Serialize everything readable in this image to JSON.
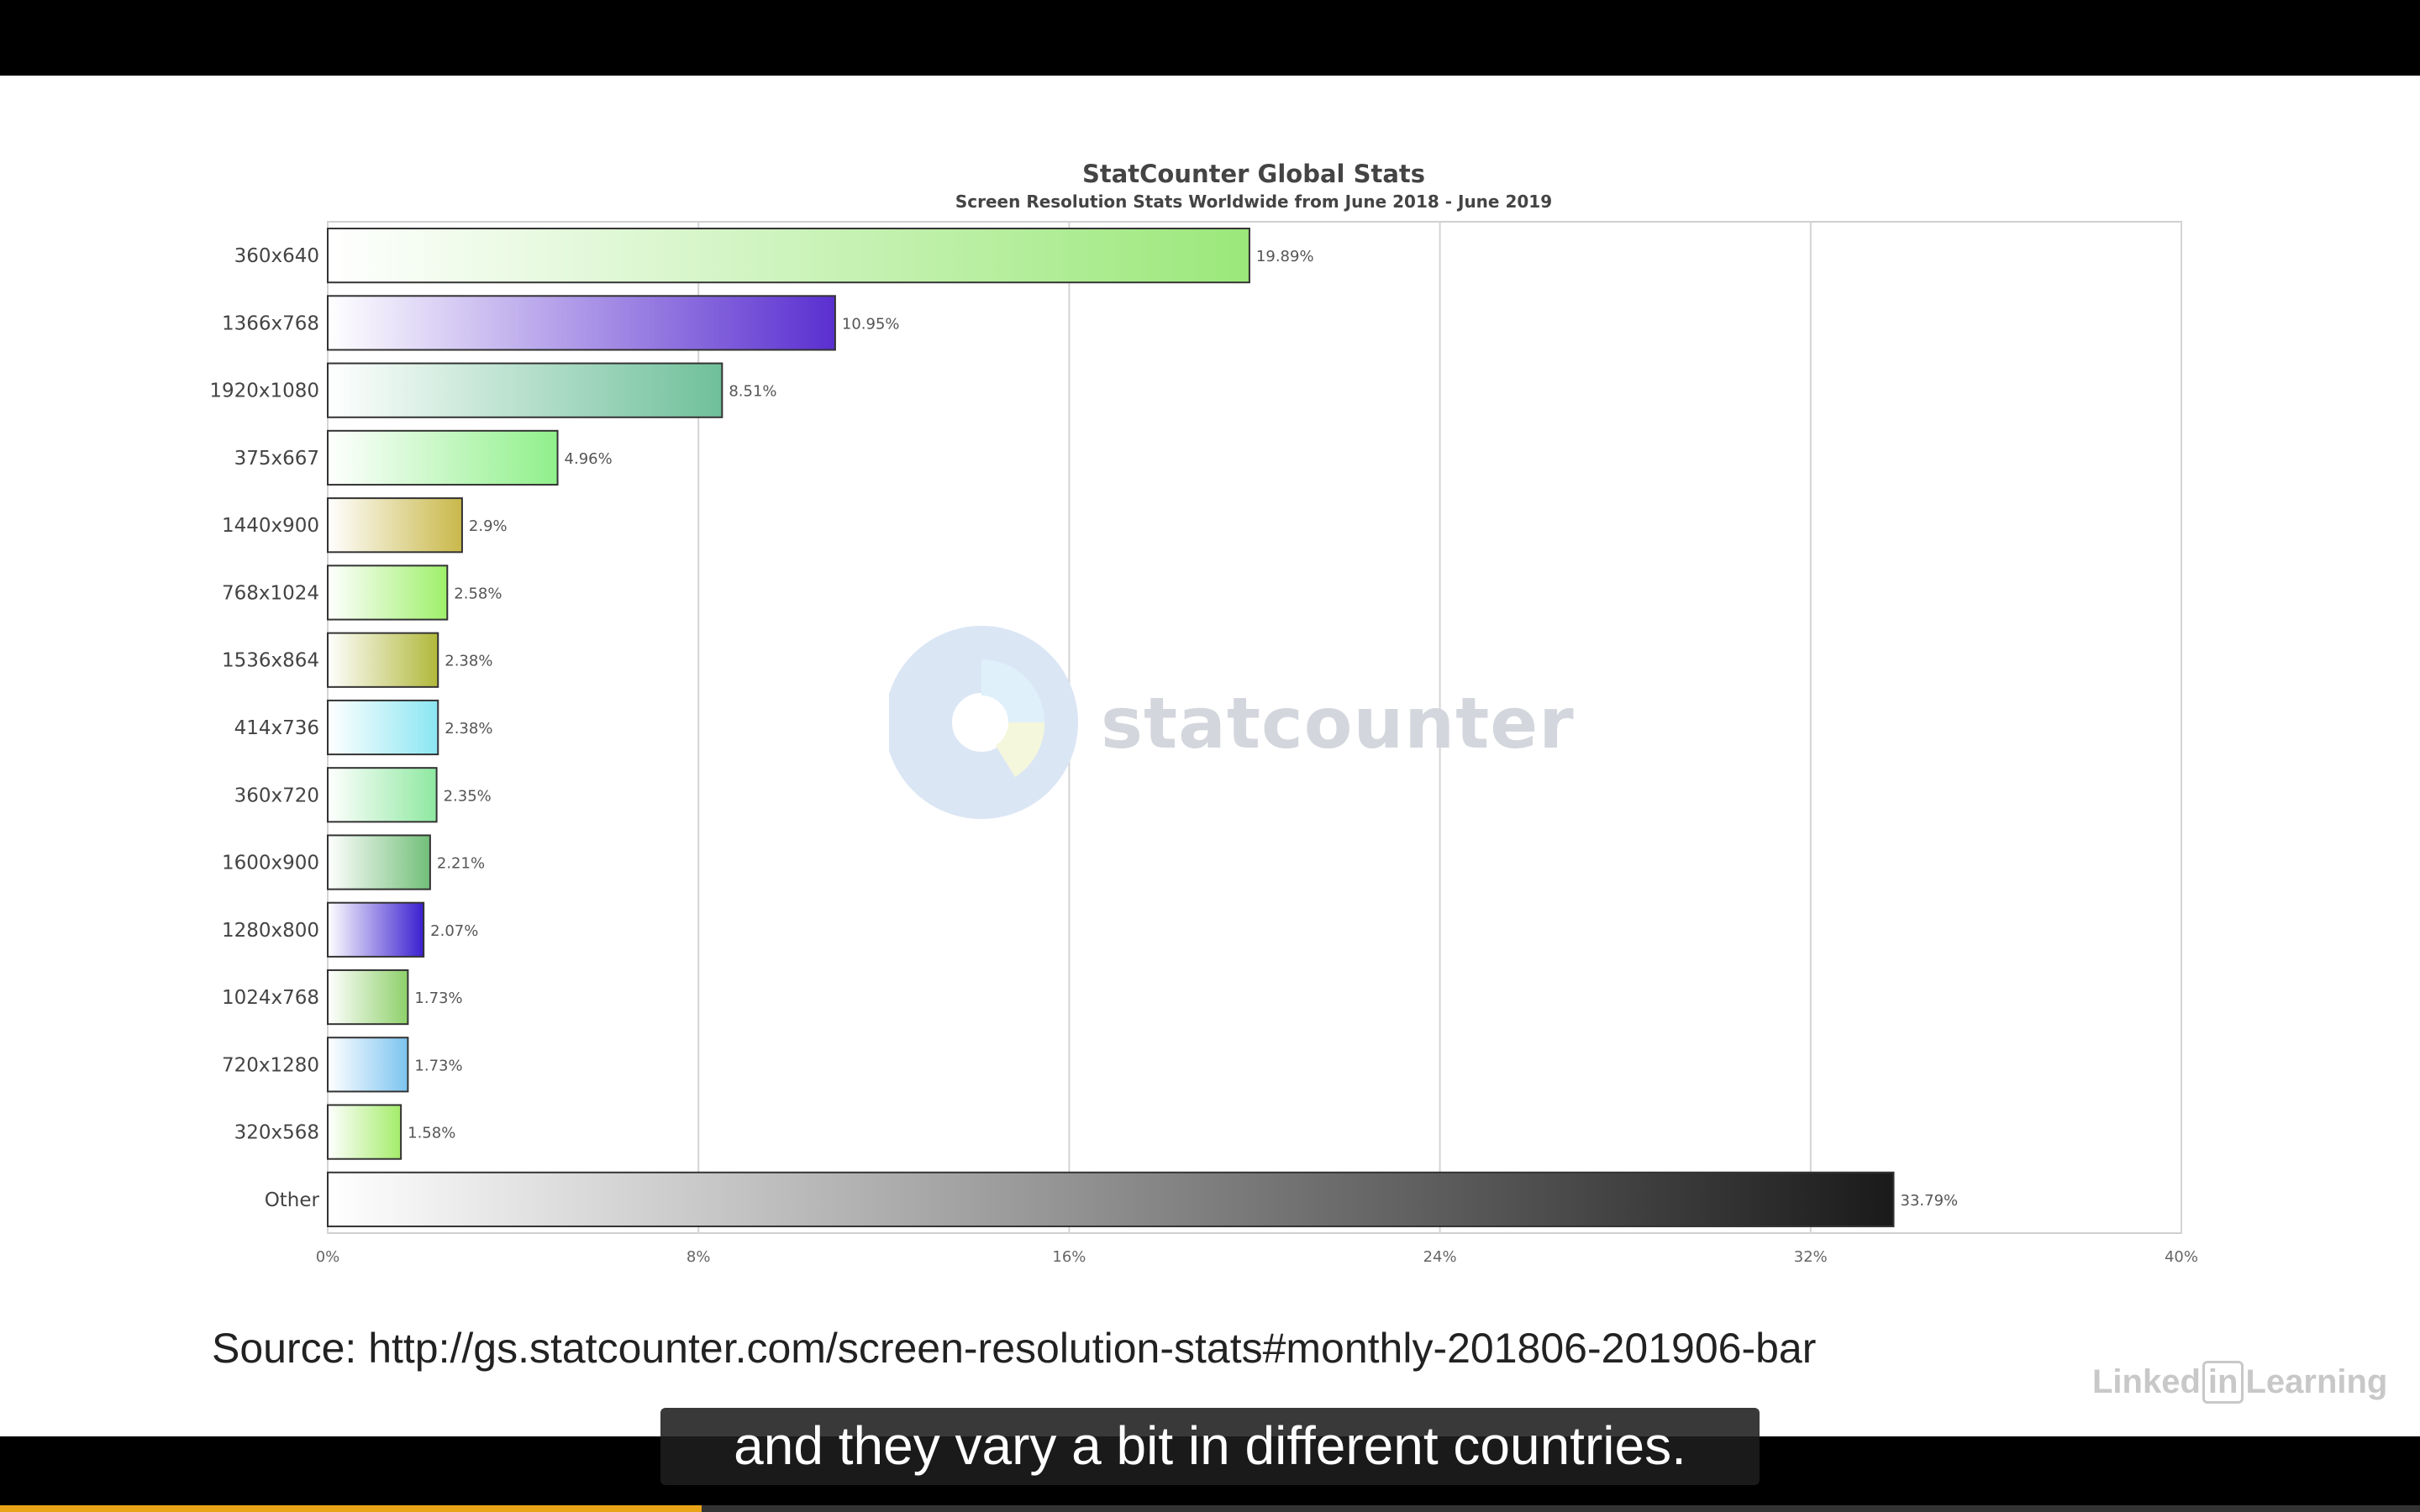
{
  "chart_data": {
    "type": "bar",
    "orientation": "horizontal",
    "title": "StatCounter Global Stats",
    "subtitle": "Screen Resolution Stats Worldwide from June 2018 - June 2019",
    "categories": [
      "360x640",
      "1366x768",
      "1920x1080",
      "375x667",
      "1440x900",
      "768x1024",
      "1536x864",
      "414x736",
      "360x720",
      "1600x900",
      "1280x800",
      "1024x768",
      "720x1280",
      "320x568",
      "Other"
    ],
    "values": [
      19.89,
      10.95,
      8.51,
      4.96,
      2.9,
      2.58,
      2.38,
      2.38,
      2.35,
      2.21,
      2.07,
      1.73,
      1.73,
      1.58,
      33.79
    ],
    "data_labels": [
      "19.89%",
      "10.95%",
      "8.51%",
      "4.96%",
      "2.9%",
      "2.58%",
      "2.38%",
      "2.38%",
      "2.35%",
      "2.21%",
      "2.07%",
      "1.73%",
      "1.73%",
      "1.58%",
      "33.79%"
    ],
    "xlim": [
      0,
      40
    ],
    "x_ticks": [
      "0%",
      "8%",
      "16%",
      "24%",
      "32%",
      "40%"
    ],
    "grid": true,
    "bar_colors": [
      "#9be87a",
      "#5a2fd0",
      "#6fc09a",
      "#8ff08a",
      "#c9b84a",
      "#9ef06a",
      "#b0b83a",
      "#8ae6f2",
      "#8ee8a0",
      "#72bf78",
      "#3a1fd0",
      "#8ed06a",
      "#7cc4f0",
      "#a4ec6a",
      "#1a1a1a"
    ]
  },
  "watermark": {
    "text": "statcounter"
  },
  "source": "Source: http://gs.statcounter.com/screen-resolution-stats#monthly-201806-201906-bar",
  "brand": {
    "prefix": "Linked",
    "box": "in",
    "suffix": "Learning"
  },
  "caption": "and they vary a bit in different countries.",
  "player": {
    "progress": 0.29,
    "accent": "#e8a317"
  }
}
